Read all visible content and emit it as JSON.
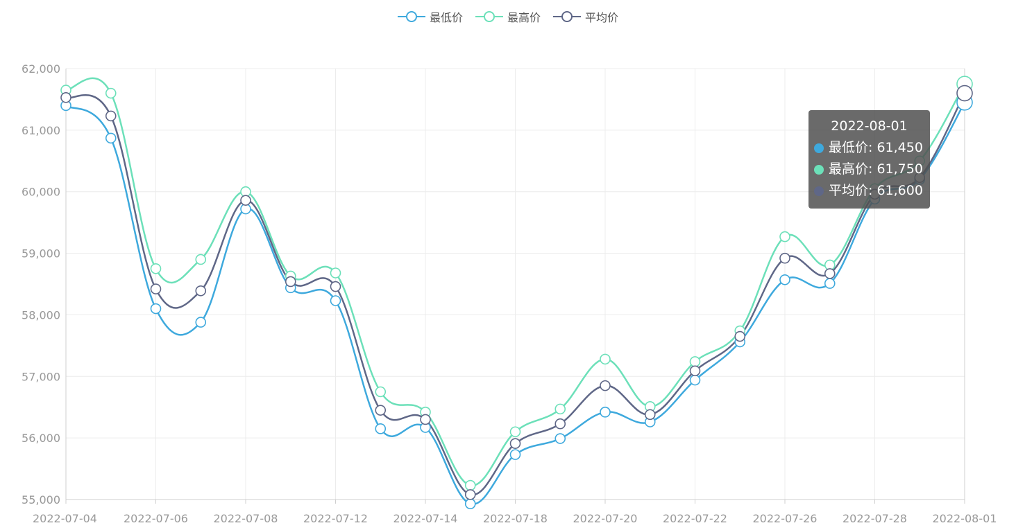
{
  "legend": {
    "items": [
      {
        "label": "最低价",
        "color": "#3ea9dd"
      },
      {
        "label": "最高价",
        "color": "#6ce0b9"
      },
      {
        "label": "平均价",
        "color": "#5f6787"
      }
    ]
  },
  "tooltip": {
    "title": "2022-08-01",
    "rows": [
      {
        "text": "最低价: 61,450",
        "color": "#3ea9dd"
      },
      {
        "text": "最高价: 61,750",
        "color": "#6ce0b9"
      },
      {
        "text": "平均价: 61,600",
        "color": "#5f6787"
      }
    ]
  },
  "chart_data": {
    "type": "line",
    "smooth": true,
    "grid": true,
    "legend_position": "top-center",
    "ylim": [
      55000,
      62000
    ],
    "y_ticks": [
      "55,000",
      "56,000",
      "57,000",
      "58,000",
      "59,000",
      "60,000",
      "61,000",
      "62,000"
    ],
    "x_tick_labels": [
      "2022-07-04",
      "2022-07-06",
      "2022-07-08",
      "2022-07-12",
      "2022-07-14",
      "2022-07-18",
      "2022-07-20",
      "2022-07-22",
      "2022-07-26",
      "2022-07-28",
      "2022-08-01"
    ],
    "points": 21,
    "series": [
      {
        "name": "最低价",
        "color": "#3ea9dd",
        "values": [
          61400,
          60870,
          58100,
          57880,
          59720,
          58440,
          58230,
          56150,
          56170,
          54930,
          55730,
          55990,
          56420,
          56260,
          56940,
          57560,
          58570,
          58510,
          59880,
          60200,
          61450
        ]
      },
      {
        "name": "最高价",
        "color": "#6ce0b9",
        "values": [
          61650,
          61600,
          58750,
          58900,
          60000,
          58630,
          58680,
          56750,
          56420,
          55230,
          56100,
          56470,
          57280,
          56510,
          57240,
          57740,
          59270,
          58810,
          60050,
          60500,
          61750
        ]
      },
      {
        "name": "平均价",
        "color": "#5f6787",
        "values": [
          61530,
          61230,
          58420,
          58390,
          59860,
          58540,
          58460,
          56450,
          56300,
          55080,
          55910,
          56230,
          56850,
          56380,
          57090,
          57650,
          58920,
          58670,
          59960,
          60230,
          61600
        ]
      }
    ],
    "highlight_index": 20
  }
}
